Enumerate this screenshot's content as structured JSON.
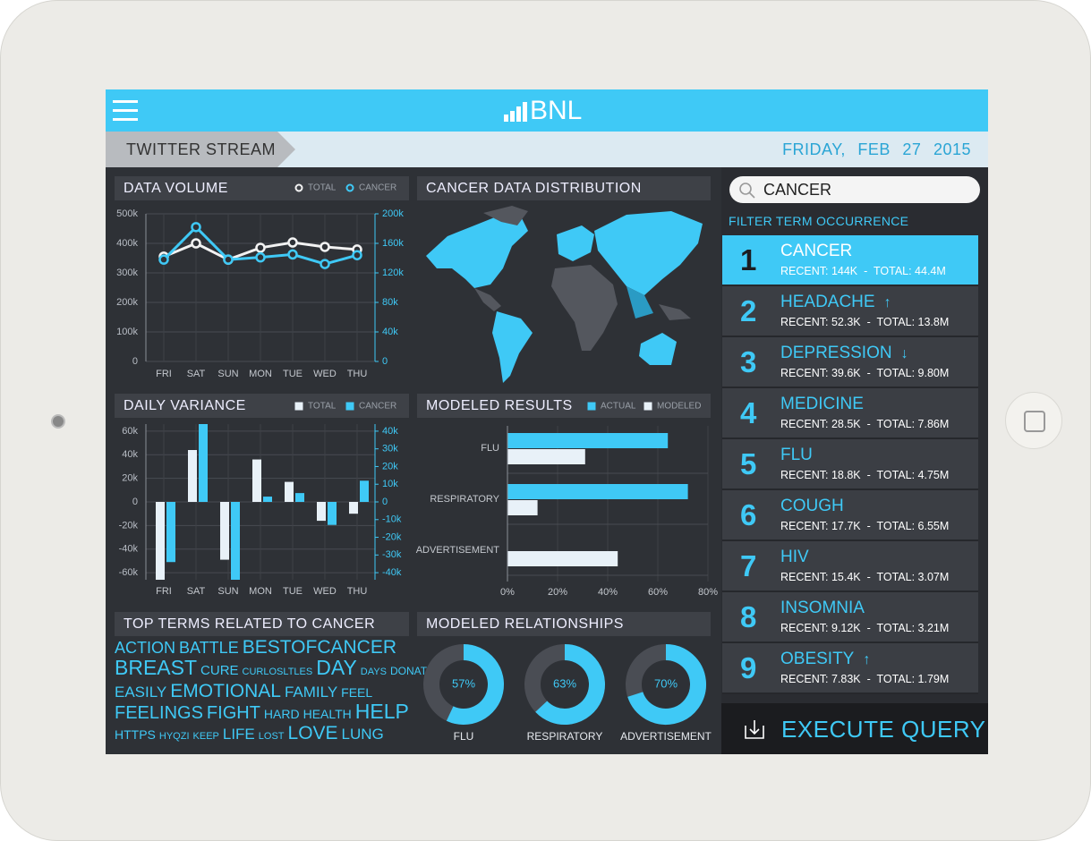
{
  "header": {
    "logo": "BNL"
  },
  "subheader": {
    "section": "TWITTER STREAM",
    "date": "FRIDAY, FEB 27 2015"
  },
  "chart_data": [
    {
      "type": "line",
      "title": "DATA VOLUME",
      "categories": [
        "FRI",
        "SAT",
        "SUN",
        "MON",
        "TUE",
        "WED",
        "THU"
      ],
      "series": [
        {
          "name": "TOTAL",
          "color": "#f2f2f2",
          "values": [
            355000,
            400000,
            345000,
            385000,
            403000,
            388000,
            379000
          ]
        },
        {
          "name": "CANCER",
          "color": "#3fc9f6",
          "axis": "y2",
          "values": [
            138000,
            182000,
            138000,
            141000,
            145000,
            132000,
            144000
          ]
        }
      ],
      "ylim": [
        0,
        500000
      ],
      "yticks": [
        0,
        {
          "value": 100000,
          "label": "100k"
        },
        {
          "value": 200000,
          "label": "200k"
        },
        {
          "value": 300000,
          "label": "300k"
        },
        {
          "value": 400000,
          "label": "400k"
        },
        {
          "value": 500000,
          "label": "500k"
        }
      ],
      "y2lim": [
        0,
        200000
      ],
      "y2ticks": [
        0,
        {
          "value": 40000,
          "label": "40k"
        },
        {
          "value": 80000,
          "label": "80k"
        },
        {
          "value": 120000,
          "label": "120k"
        },
        {
          "value": 160000,
          "label": "160k"
        },
        {
          "value": 200000,
          "label": "200k"
        }
      ],
      "grid": true
    },
    {
      "type": "bar",
      "title": "DAILY VARIANCE",
      "categories": [
        "FRI",
        "SAT",
        "SUN",
        "MON",
        "TUE",
        "WED",
        "THU"
      ],
      "series": [
        {
          "name": "TOTAL",
          "color": "#e8f1f8",
          "values": [
            -66000,
            44000,
            -49000,
            36000,
            17000,
            -16000,
            -10000
          ]
        },
        {
          "name": "CANCER",
          "color": "#3fc9f6",
          "axis": "y2",
          "values": [
            -34000,
            44000,
            -44000,
            3000,
            5000,
            -13000,
            12000
          ]
        }
      ],
      "ylim": [
        -66000,
        66000
      ],
      "yticks": [
        {
          "value": 60000,
          "label": "60k"
        },
        {
          "value": 40000,
          "label": "40k"
        },
        {
          "value": 20000,
          "label": "20k"
        },
        0,
        {
          "value": -20000,
          "label": "-20k"
        },
        {
          "value": -40000,
          "label": "-40k"
        },
        {
          "value": -60000,
          "label": "-60k"
        }
      ],
      "y2lim": [
        -44000,
        44000
      ],
      "y2ticks": [
        {
          "value": 40000,
          "label": "40k"
        },
        {
          "value": 30000,
          "label": "30k"
        },
        {
          "value": 20000,
          "label": "20k"
        },
        {
          "value": 10000,
          "label": "10k"
        },
        0,
        {
          "value": -10000,
          "label": "-10k"
        },
        {
          "value": -20000,
          "label": "-20k"
        },
        {
          "value": -30000,
          "label": "-30k"
        },
        {
          "value": -40000,
          "label": "-40k"
        }
      ],
      "grid": true
    },
    {
      "type": "map",
      "title": "CANCER DATA DISTRIBUTION"
    },
    {
      "type": "barh",
      "title": "MODELED RESULTS",
      "categories": [
        "FLU",
        "RESPIRATORY",
        "ADVERTISEMENT"
      ],
      "series": [
        {
          "name": "ACTUAL",
          "color": "#3fc9f6",
          "values": [
            64,
            72,
            null
          ]
        },
        {
          "name": "MODELED",
          "color": "#e8f1f8",
          "values": [
            31,
            12,
            44
          ]
        }
      ],
      "xlim": [
        0,
        80
      ],
      "xticks": [
        {
          "value": 0,
          "label": "0%"
        },
        {
          "value": 20,
          "label": "20%"
        },
        {
          "value": 40,
          "label": "40%"
        },
        {
          "value": 60,
          "label": "60%"
        },
        {
          "value": 80,
          "label": "80%"
        }
      ],
      "grid": true
    },
    {
      "type": "donut",
      "title": "MODELED RELATIONSHIPS",
      "categories": [
        "FLU",
        "RESPIRATORY",
        "ADVERTISEMENT"
      ],
      "values": [
        57,
        63,
        70
      ],
      "value_labels": [
        "57%",
        "63%",
        "70%"
      ],
      "color": "#3fc9f6"
    }
  ],
  "top_terms": {
    "title": "TOP TERMS RELATED TO CANCER",
    "words": [
      "ACTION",
      "BATTLE",
      "BESTOFCANCER",
      "BREAST",
      "CURE",
      "CURLOSLTLES",
      "DAY",
      "DAYS",
      "DONATE",
      "EASILY",
      "EMOTIONAL",
      "FAMILY",
      "FEEL",
      "FEELINGS",
      "FIGHT",
      "HARD",
      "HEALTH",
      "HELP",
      "HTTPS",
      "HYQZI",
      "KEEP",
      "LIFE",
      "LOST",
      "LOVE",
      "LUNG"
    ]
  },
  "search": {
    "query": "CANCER",
    "filter_label": "FILTER TERM OCCURRENCE",
    "results": [
      {
        "rank": 1,
        "term": "CANCER",
        "stats": "RECENT: 144K  -  TOTAL: 44.4M"
      },
      {
        "rank": 2,
        "term": "HEADACHE",
        "trend": "↑",
        "stats": "RECENT: 52.3K  -  TOTAL: 13.8M"
      },
      {
        "rank": 3,
        "term": "DEPRESSION",
        "trend": "↓",
        "stats": "RECENT: 39.6K  -  TOTAL: 9.80M"
      },
      {
        "rank": 4,
        "term": "MEDICINE",
        "stats": "RECENT: 28.5K  -  TOTAL: 7.86M"
      },
      {
        "rank": 5,
        "term": "FLU",
        "stats": "RECENT: 18.8K  -  TOTAL: 4.75M"
      },
      {
        "rank": 6,
        "term": "COUGH",
        "stats": "RECENT: 17.7K  -  TOTAL: 6.55M"
      },
      {
        "rank": 7,
        "term": "HIV",
        "stats": "RECENT: 15.4K  -  TOTAL: 3.07M"
      },
      {
        "rank": 8,
        "term": "INSOMNIA",
        "stats": "RECENT: 9.12K  -  TOTAL: 3.21M"
      },
      {
        "rank": 9,
        "term": "OBESITY",
        "trend": "↑",
        "stats": "RECENT: 7.83K  -  TOTAL: 1.79M"
      }
    ]
  },
  "action": "EXECUTE QUERY"
}
